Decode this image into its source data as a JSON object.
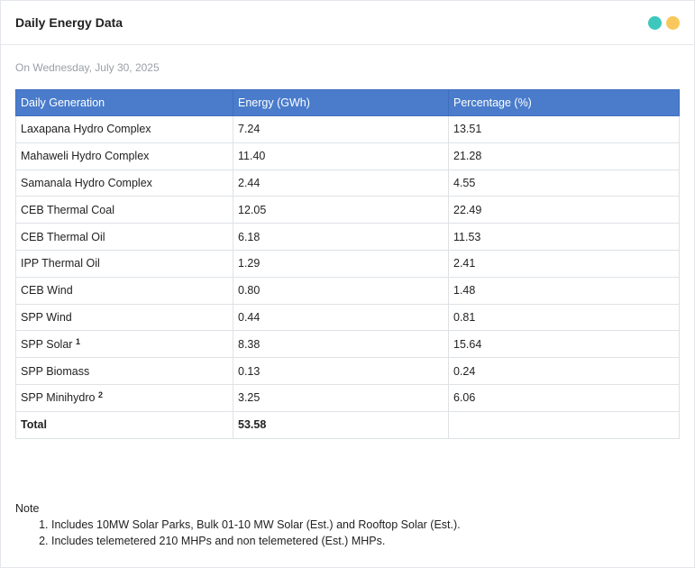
{
  "header": {
    "title": "Daily Energy Data",
    "dot_colors": [
      "#3ec8bd",
      "#f9c85c"
    ]
  },
  "date_line": "On Wednesday, July 30, 2025",
  "table": {
    "headers": [
      "Daily Generation",
      "Energy (GWh)",
      "Percentage (%)"
    ],
    "rows": [
      {
        "name": "Laxapana Hydro Complex",
        "sup": "",
        "energy": "7.24",
        "pct": "13.51"
      },
      {
        "name": "Mahaweli Hydro Complex",
        "sup": "",
        "energy": "11.40",
        "pct": "21.28"
      },
      {
        "name": "Samanala Hydro Complex",
        "sup": "",
        "energy": "2.44",
        "pct": "4.55"
      },
      {
        "name": "CEB Thermal Coal",
        "sup": "",
        "energy": "12.05",
        "pct": "22.49"
      },
      {
        "name": "CEB Thermal Oil",
        "sup": "",
        "energy": "6.18",
        "pct": "11.53"
      },
      {
        "name": "IPP Thermal Oil",
        "sup": "",
        "energy": "1.29",
        "pct": "2.41"
      },
      {
        "name": "CEB Wind",
        "sup": "",
        "energy": "0.80",
        "pct": "1.48"
      },
      {
        "name": "SPP Wind",
        "sup": "",
        "energy": "0.44",
        "pct": "0.81"
      },
      {
        "name": "SPP Solar",
        "sup": "1",
        "energy": "8.38",
        "pct": "15.64"
      },
      {
        "name": "SPP Biomass",
        "sup": "",
        "energy": "0.13",
        "pct": "0.24"
      },
      {
        "name": "SPP Minihydro",
        "sup": "2",
        "energy": "3.25",
        "pct": "6.06"
      }
    ],
    "total": {
      "label": "Total",
      "energy": "53.58",
      "pct": ""
    }
  },
  "note": {
    "title": "Note",
    "items": [
      "Includes 10MW Solar Parks, Bulk 01-10 MW Solar (Est.) and Rooftop Solar (Est.).",
      "Includes telemetered 210 MHPs and non telemetered (Est.) MHPs."
    ]
  }
}
